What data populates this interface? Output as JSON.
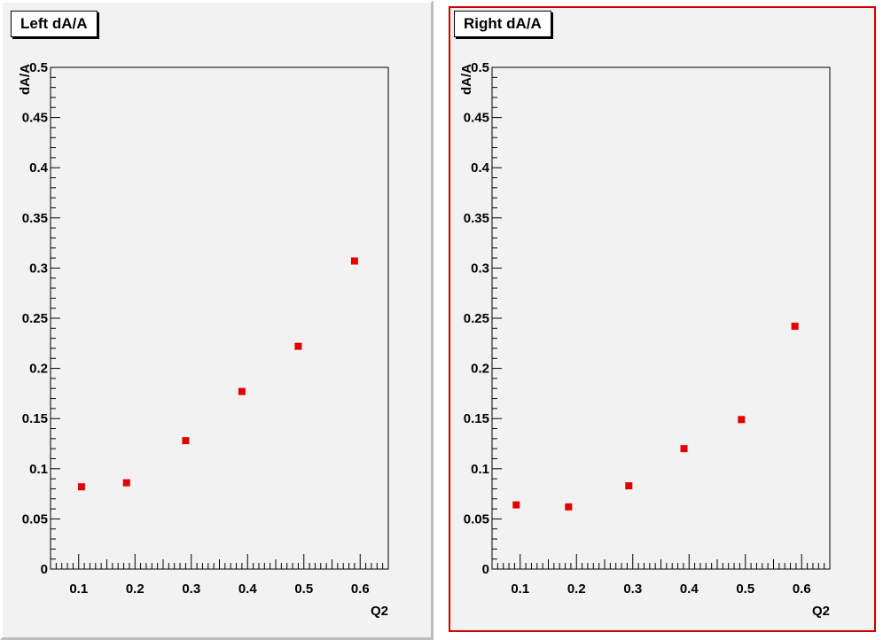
{
  "panels": [
    {
      "title": "Left dA/A",
      "border_color": "#bdbdbd"
    },
    {
      "title": "Right dA/A",
      "border_color": "#d00000"
    }
  ],
  "chart_data": [
    {
      "type": "scatter",
      "title": "Left dA/A",
      "xlabel": "Q2",
      "ylabel": "dA/A",
      "xlim": [
        0.05,
        0.65
      ],
      "ylim": [
        0,
        0.5
      ],
      "x_ticks": [
        "0.1",
        "0.2",
        "0.3",
        "0.4",
        "0.5",
        "0.6"
      ],
      "y_ticks": [
        "0",
        "0.05",
        "0.1",
        "0.15",
        "0.2",
        "0.25",
        "0.3",
        "0.35",
        "0.4",
        "0.45",
        "0.5"
      ],
      "marker_color": "#e00000",
      "grid": false,
      "series": [
        {
          "x": [
            0.105,
            0.185,
            0.29,
            0.39,
            0.49,
            0.59
          ],
          "y": [
            0.082,
            0.086,
            0.128,
            0.177,
            0.222,
            0.307
          ]
        }
      ]
    },
    {
      "type": "scatter",
      "title": "Right dA/A",
      "xlabel": "Q2",
      "ylabel": "dA/A",
      "xlim": [
        0.05,
        0.65
      ],
      "ylim": [
        0,
        0.5
      ],
      "x_ticks": [
        "0.1",
        "0.2",
        "0.3",
        "0.4",
        "0.5",
        "0.6"
      ],
      "y_ticks": [
        "0",
        "0.05",
        "0.1",
        "0.15",
        "0.2",
        "0.25",
        "0.3",
        "0.35",
        "0.4",
        "0.45",
        "0.5"
      ],
      "marker_color": "#e00000",
      "grid": false,
      "series": [
        {
          "x": [
            0.093,
            0.186,
            0.293,
            0.391,
            0.493,
            0.588
          ],
          "y": [
            0.064,
            0.062,
            0.083,
            0.12,
            0.149,
            0.242
          ]
        }
      ]
    }
  ]
}
